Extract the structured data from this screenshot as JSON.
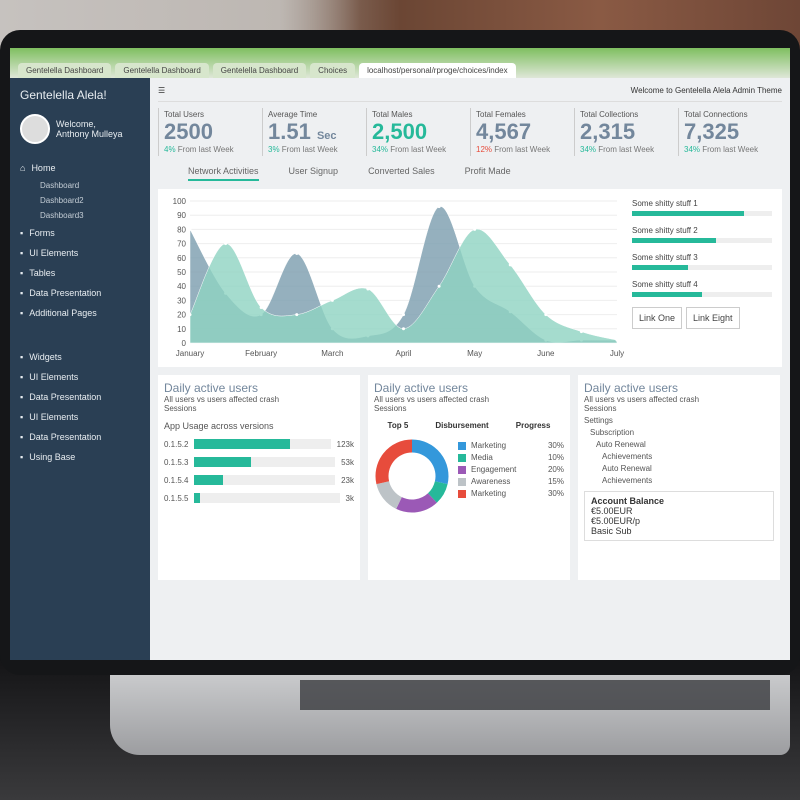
{
  "browser": {
    "tabs": [
      "Gentelella Dashboard",
      "Gentelella Dashboard",
      "Gentelella Dashboard",
      "Choices"
    ],
    "address": "localhost/personal/rproge/choices/index"
  },
  "sidebar": {
    "brand": "Gentelella Alela!",
    "welcome": "Welcome,",
    "user": "Anthony Mulleya",
    "items": [
      {
        "label": "Home"
      },
      {
        "label": "Forms"
      },
      {
        "label": "UI Elements"
      },
      {
        "label": "Tables"
      },
      {
        "label": "Data Presentation"
      },
      {
        "label": "Additional Pages"
      },
      {
        "label": "Widgets"
      },
      {
        "label": "UI Elements"
      },
      {
        "label": "Data Presentation"
      },
      {
        "label": "UI Elements"
      },
      {
        "label": "Data Presentation"
      },
      {
        "label": "Using Base"
      }
    ],
    "subitems": [
      "Dashboard",
      "Dashboard2",
      "Dashboard3"
    ]
  },
  "header": {
    "welcome": "Welcome to Gentelella Alela Admin Theme"
  },
  "stats": [
    {
      "label": "Total Users",
      "value": "2500",
      "unit": "",
      "change": "4%",
      "note": "From last Week",
      "dir": "up"
    },
    {
      "label": "Average Time",
      "value": "1.51",
      "unit": "Sec",
      "change": "3%",
      "note": "From last Week",
      "dir": "up"
    },
    {
      "label": "Total Males",
      "value": "2,500",
      "unit": "",
      "change": "34%",
      "note": "From last Week",
      "dir": "up"
    },
    {
      "label": "Total Females",
      "value": "4,567",
      "unit": "",
      "change": "12%",
      "note": "From last Week",
      "dir": "down"
    },
    {
      "label": "Total Collections",
      "value": "2,315",
      "unit": "",
      "change": "34%",
      "note": "From last Week",
      "dir": "up"
    },
    {
      "label": "Total Connections",
      "value": "7,325",
      "unit": "",
      "change": "34%",
      "note": "From last Week",
      "dir": "up"
    }
  ],
  "tabs": [
    "Network Activities",
    "User Signup",
    "Converted Sales",
    "Profit Made"
  ],
  "progress": [
    {
      "label": "Some shitty stuff 1",
      "value": 80
    },
    {
      "label": "Some shitty stuff 2",
      "value": 60
    },
    {
      "label": "Some shitty stuff 3",
      "value": 40
    },
    {
      "label": "Some shitty stuff 4",
      "value": 50
    }
  ],
  "links": [
    "Link One",
    "Link Eight"
  ],
  "chart_data": {
    "type": "area",
    "categories": [
      "January",
      "February",
      "March",
      "April",
      "May",
      "June",
      "July"
    ],
    "yticks": [
      0,
      10,
      20,
      30,
      40,
      50,
      60,
      70,
      80,
      90,
      100
    ],
    "ylim": [
      0,
      100
    ],
    "x": [
      0,
      0.5,
      1,
      1.5,
      2,
      2.5,
      3,
      3.5,
      4,
      4.5,
      5,
      5.5,
      6
    ],
    "series": [
      {
        "values": [
          80,
          35,
          20,
          63,
          10,
          5,
          20,
          96,
          40,
          22,
          2,
          2,
          2
        ],
        "color": "#7a9cae"
      },
      {
        "values": [
          20,
          70,
          25,
          20,
          30,
          38,
          10,
          40,
          80,
          55,
          20,
          8,
          2
        ],
        "color": "#8fd3c2"
      }
    ]
  },
  "panels": [
    {
      "title": "Daily active users",
      "sub": "All users vs users affected crash",
      "sessions": "Sessions",
      "heading": "App Usage across versions",
      "bars": [
        {
          "label": "0.1.5.2",
          "value": "123k",
          "pct": 70
        },
        {
          "label": "0.1.5.3",
          "value": "53k",
          "pct": 40
        },
        {
          "label": "0.1.5.4",
          "value": "23k",
          "pct": 20
        },
        {
          "label": "0.1.5.5",
          "value": "3k",
          "pct": 4
        }
      ]
    },
    {
      "title": "Daily active users",
      "sub": "All users vs users affected crash",
      "sessions": "Sessions",
      "cols": [
        "Top 5",
        "Disbursement",
        "Progress"
      ],
      "legend": [
        {
          "label": "Marketing",
          "value": "30%",
          "color": "#3498db"
        },
        {
          "label": "Media",
          "value": "10%",
          "color": "#26b99a"
        },
        {
          "label": "Engagement",
          "value": "20%",
          "color": "#9b59b6"
        },
        {
          "label": "Awareness",
          "value": "15%",
          "color": "#bdc3c7"
        },
        {
          "label": "Marketing",
          "value": "30%",
          "color": "#e74c3c"
        }
      ]
    },
    {
      "title": "Daily active users",
      "sub": "All users vs users affected crash",
      "sessions": "Sessions",
      "items": [
        "Settings",
        "Subscription",
        "Auto Renewal",
        "Achievements",
        "Auto Renewal",
        "Achievements"
      ],
      "account": {
        "title": "Account Balance",
        "line1": "€5.00EUR",
        "line2": "€5.00EUR/p",
        "line3": "Basic Sub"
      }
    }
  ]
}
